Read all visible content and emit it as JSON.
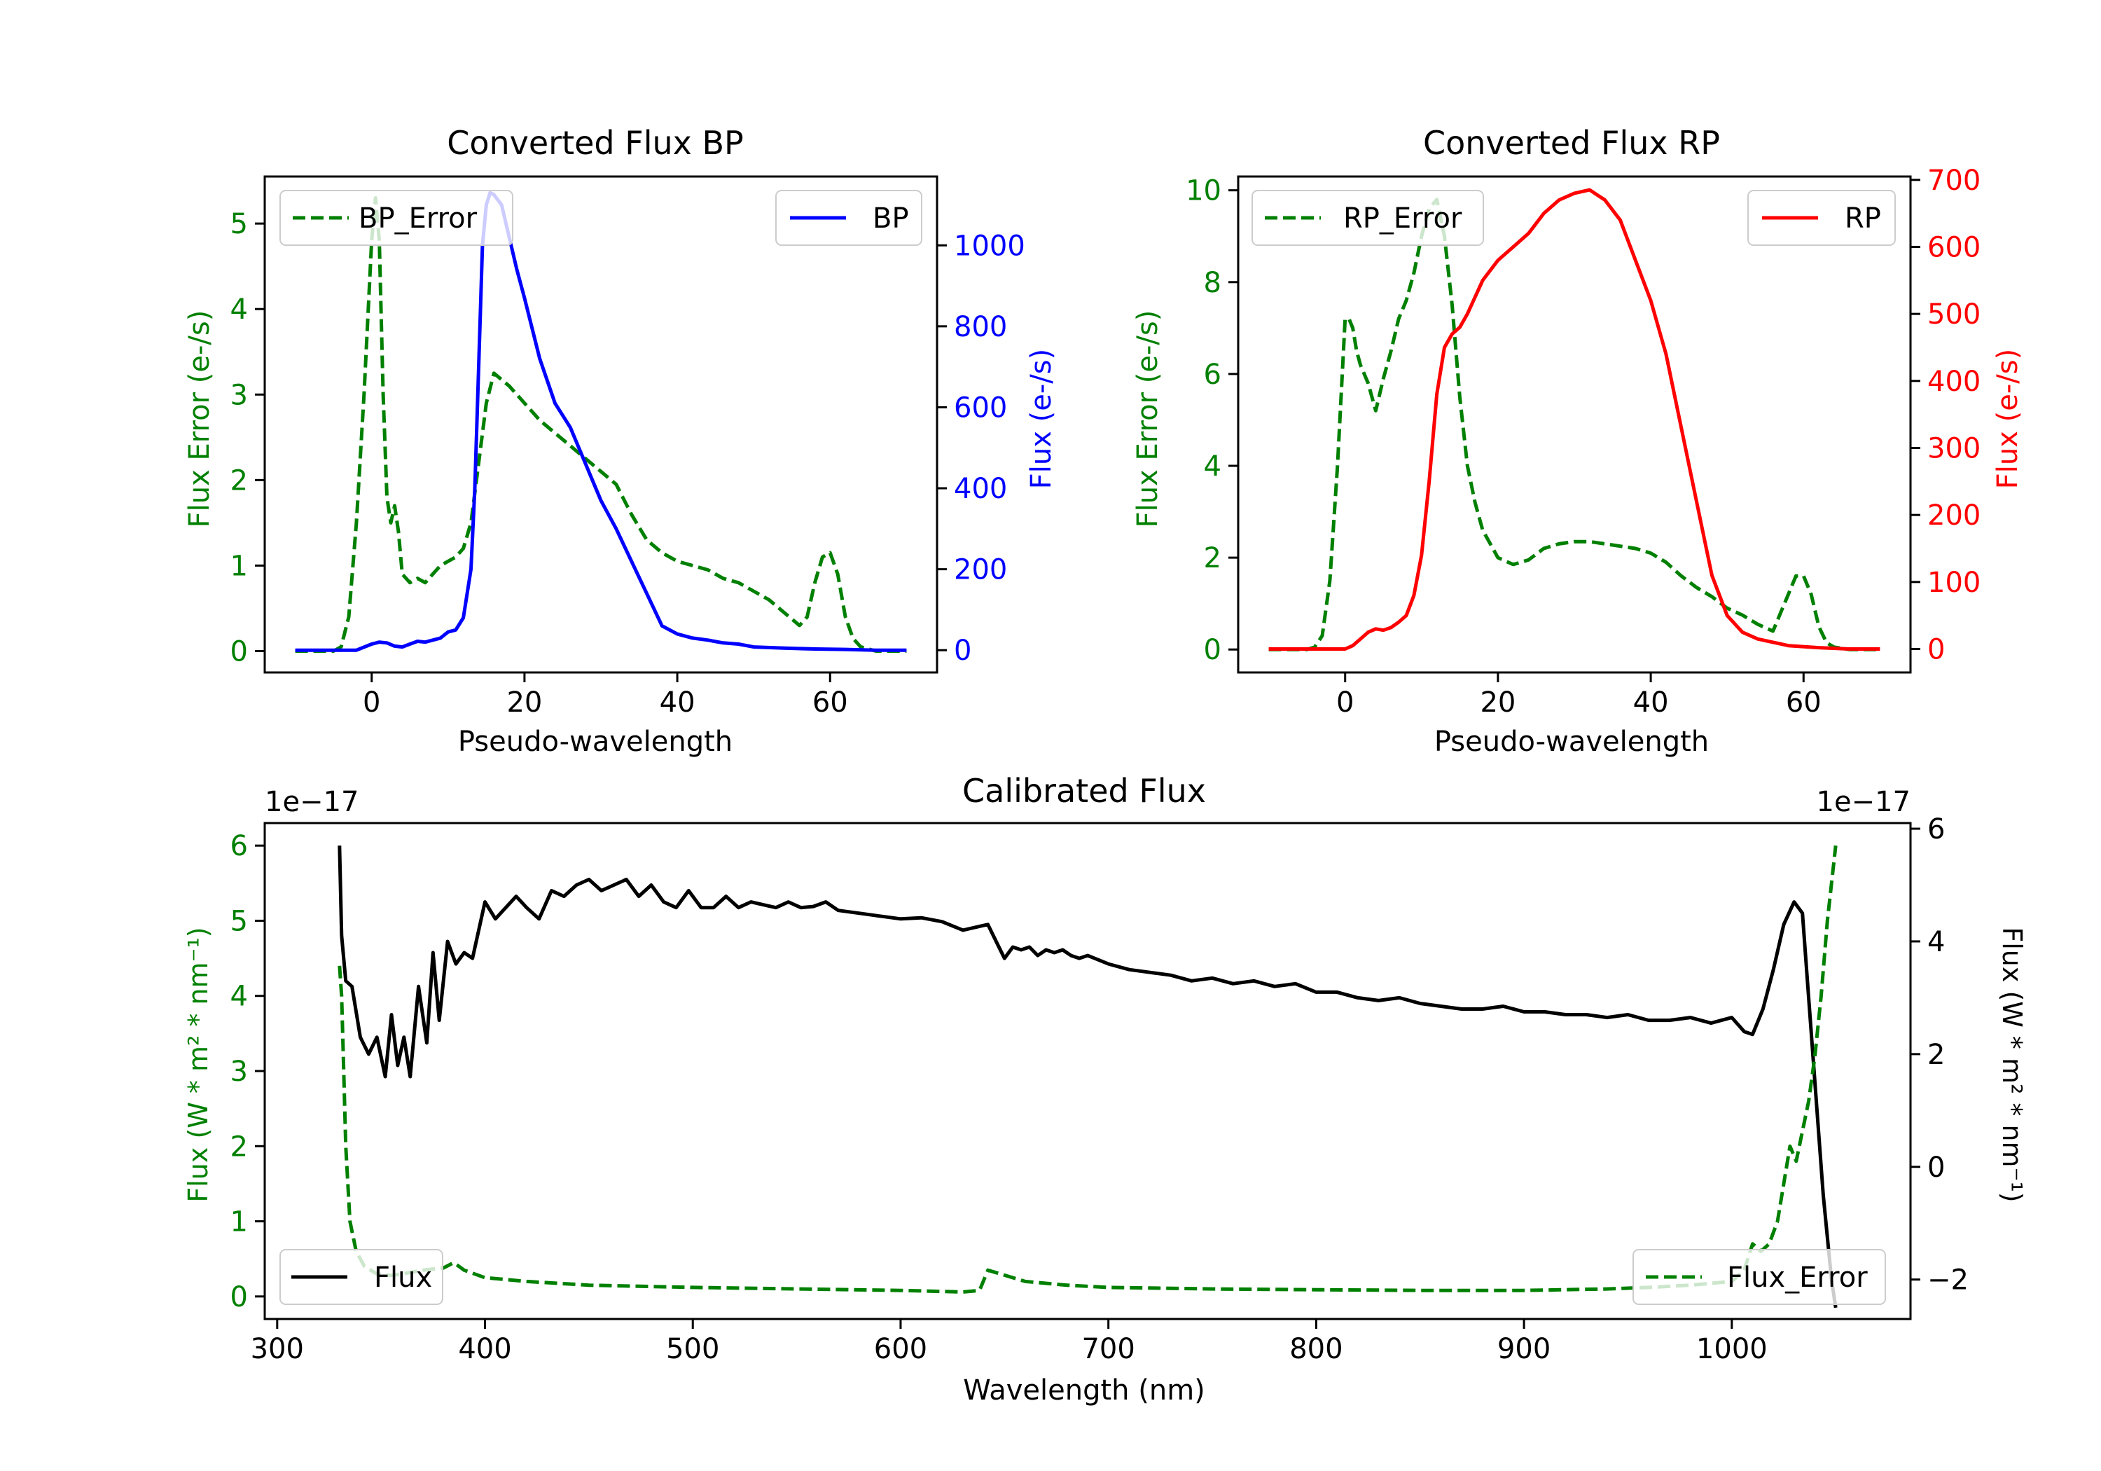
{
  "colors": {
    "green": "#008000",
    "blue": "#0000ff",
    "red": "#ff0000",
    "black": "#000000"
  },
  "chart_data": [
    {
      "type": "line",
      "title": "Converted Flux BP",
      "xlabel": "Pseudo-wavelength",
      "ylabel_left": "Flux Error (e-/s)",
      "ylabel_right": "Flux (e-/s)",
      "xlim": [
        -14,
        74
      ],
      "ylim_left": [
        -0.25,
        5.55
      ],
      "ylim_right": [
        -55,
        1170
      ],
      "xticks": [
        0,
        20,
        40,
        60
      ],
      "yticks_left": [
        0,
        1,
        2,
        3,
        4,
        5
      ],
      "yticks_right": [
        0,
        200,
        400,
        600,
        800,
        1000
      ],
      "series": [
        {
          "name": "BP_Error",
          "axis": "left",
          "color": "#008000",
          "style": "dashed",
          "x": [
            -10,
            -5,
            -4,
            -3,
            -2,
            -1,
            0,
            0.5,
            1,
            1.5,
            2,
            2.5,
            3,
            3.5,
            4,
            5,
            6,
            7,
            8,
            9,
            10,
            11,
            12,
            13,
            14,
            15,
            16,
            18,
            20,
            22,
            24,
            26,
            28,
            30,
            32,
            34,
            36,
            38,
            40,
            42,
            44,
            46,
            48,
            50,
            52,
            54,
            56,
            57,
            58,
            59,
            60,
            61,
            62,
            63,
            64,
            66,
            70
          ],
          "values": [
            0,
            0,
            0.05,
            0.4,
            1.5,
            3.0,
            4.8,
            5.3,
            4.8,
            3.0,
            1.8,
            1.5,
            1.7,
            1.4,
            0.9,
            0.8,
            0.85,
            0.8,
            0.9,
            1.0,
            1.05,
            1.1,
            1.2,
            1.5,
            2.2,
            2.9,
            3.25,
            3.1,
            2.9,
            2.7,
            2.55,
            2.4,
            2.25,
            2.1,
            1.95,
            1.6,
            1.3,
            1.15,
            1.05,
            1.0,
            0.95,
            0.85,
            0.8,
            0.7,
            0.6,
            0.45,
            0.3,
            0.4,
            0.8,
            1.1,
            1.15,
            0.9,
            0.4,
            0.15,
            0.05,
            0,
            0
          ]
        },
        {
          "name": "BP",
          "axis": "right",
          "color": "#0000ff",
          "style": "solid",
          "x": [
            -10,
            -2,
            0,
            1,
            2,
            3,
            4,
            5,
            6,
            7,
            8,
            9,
            10,
            11,
            12,
            13,
            13.5,
            14,
            14.5,
            15,
            15.5,
            16,
            17,
            18,
            19,
            20,
            22,
            24,
            26,
            28,
            30,
            32,
            34,
            36,
            38,
            40,
            42,
            44,
            46,
            48,
            50,
            54,
            58,
            62,
            66,
            70
          ],
          "values": [
            0,
            0,
            15,
            20,
            18,
            10,
            8,
            15,
            22,
            20,
            25,
            30,
            45,
            50,
            80,
            200,
            400,
            700,
            1000,
            1100,
            1130,
            1125,
            1100,
            1020,
            940,
            870,
            720,
            610,
            550,
            460,
            370,
            300,
            220,
            140,
            60,
            40,
            30,
            25,
            18,
            15,
            8,
            5,
            3,
            2,
            0,
            0
          ]
        }
      ],
      "legend": [
        {
          "label": "BP_Error",
          "placement": "upper-left"
        },
        {
          "label": "BP",
          "placement": "upper-right"
        }
      ]
    },
    {
      "type": "line",
      "title": "Converted Flux RP",
      "xlabel": "Pseudo-wavelength",
      "ylabel_left": "Flux Error (e-/s)",
      "ylabel_right": "Flux (e-/s)",
      "xlim": [
        -14,
        74
      ],
      "ylim_left": [
        -0.5,
        10.3
      ],
      "ylim_right": [
        -35,
        705
      ],
      "xticks": [
        0,
        20,
        40,
        60
      ],
      "yticks_left": [
        0,
        2,
        4,
        6,
        8,
        10
      ],
      "yticks_right": [
        0,
        100,
        200,
        300,
        400,
        500,
        600,
        700
      ],
      "series": [
        {
          "name": "RP_Error",
          "axis": "left",
          "color": "#008000",
          "style": "dashed",
          "x": [
            -10,
            -5,
            -4,
            -3,
            -2,
            -1,
            0,
            0.5,
            1,
            1.5,
            2,
            3,
            4,
            5,
            6,
            7,
            8,
            9,
            10,
            11,
            12,
            13,
            14,
            15,
            16,
            17,
            18,
            20,
            22,
            24,
            26,
            28,
            30,
            32,
            34,
            36,
            38,
            40,
            42,
            44,
            46,
            48,
            50,
            52,
            54,
            56,
            57,
            58,
            59,
            60,
            61,
            62,
            63,
            64,
            66,
            70
          ],
          "values": [
            0,
            0,
            0.05,
            0.3,
            1.5,
            4,
            7.2,
            7.2,
            7,
            6.5,
            6.2,
            5.8,
            5.2,
            5.9,
            6.5,
            7.2,
            7.6,
            8.2,
            9.0,
            9.6,
            9.8,
            9.0,
            7.5,
            5.5,
            4.0,
            3.2,
            2.6,
            2.0,
            1.85,
            1.95,
            2.2,
            2.3,
            2.35,
            2.35,
            2.3,
            2.25,
            2.2,
            2.1,
            1.9,
            1.6,
            1.35,
            1.15,
            0.9,
            0.75,
            0.55,
            0.4,
            0.8,
            1.2,
            1.6,
            1.6,
            1.2,
            0.5,
            0.15,
            0.05,
            0,
            0
          ]
        },
        {
          "name": "RP",
          "axis": "right",
          "color": "#ff0000",
          "style": "solid",
          "x": [
            -10,
            0,
            1,
            2,
            3,
            4,
            5,
            6,
            7,
            8,
            9,
            10,
            11,
            12,
            13,
            14,
            15,
            16,
            18,
            20,
            22,
            24,
            26,
            28,
            30,
            32,
            34,
            36,
            38,
            40,
            42,
            44,
            46,
            48,
            50,
            52,
            54,
            56,
            58,
            62,
            66,
            70
          ],
          "values": [
            0,
            0,
            5,
            15,
            25,
            30,
            28,
            32,
            40,
            50,
            80,
            140,
            250,
            380,
            450,
            470,
            480,
            500,
            550,
            580,
            600,
            620,
            650,
            670,
            680,
            685,
            670,
            640,
            580,
            520,
            440,
            330,
            220,
            110,
            50,
            25,
            15,
            10,
            5,
            2,
            0,
            0
          ]
        }
      ],
      "legend": [
        {
          "label": "RP_Error",
          "placement": "upper-left"
        },
        {
          "label": "RP",
          "placement": "upper-right"
        }
      ]
    },
    {
      "type": "line",
      "title": "Calibrated Flux",
      "xlabel": "Wavelength (nm)",
      "ylabel_left": "Flux (W * m² * nm⁻¹)",
      "ylabel_right": "Flux (W * m² * nm⁻¹)",
      "offset_label_left": "1e−17",
      "offset_label_right": "1e−17",
      "xlim": [
        294,
        1086
      ],
      "ylim_left": [
        -0.3,
        6.3
      ],
      "ylim_right": [
        -2.7,
        6.1
      ],
      "xticks": [
        300,
        400,
        500,
        600,
        700,
        800,
        900,
        1000
      ],
      "yticks_left": [
        0,
        1,
        2,
        3,
        4,
        5,
        6
      ],
      "yticks_right": [
        -2,
        0,
        2,
        4,
        6
      ],
      "tick_labels_right": [
        "−2",
        "0",
        "2",
        "4",
        "6"
      ],
      "series": [
        {
          "name": "Flux",
          "axis": "right",
          "color": "#000000",
          "style": "solid",
          "x": [
            330,
            331,
            333,
            336,
            340,
            344,
            348,
            352,
            355,
            358,
            361,
            364,
            368,
            372,
            375,
            378,
            382,
            386,
            390,
            394,
            400,
            405,
            410,
            415,
            420,
            426,
            432,
            438,
            444,
            450,
            456,
            462,
            468,
            474,
            480,
            486,
            492,
            498,
            504,
            510,
            516,
            522,
            528,
            534,
            540,
            546,
            552,
            558,
            564,
            570,
            580,
            590,
            600,
            610,
            620,
            630,
            636,
            642,
            646,
            650,
            654,
            658,
            662,
            666,
            670,
            674,
            678,
            682,
            686,
            690,
            700,
            710,
            720,
            730,
            740,
            750,
            760,
            770,
            780,
            790,
            800,
            810,
            820,
            830,
            840,
            850,
            860,
            870,
            880,
            890,
            900,
            910,
            920,
            930,
            940,
            950,
            960,
            970,
            980,
            990,
            1000,
            1006,
            1010,
            1015,
            1020,
            1025,
            1030,
            1034,
            1036,
            1040,
            1044,
            1048,
            1050
          ],
          "values": [
            5.7,
            4.1,
            3.3,
            3.2,
            2.3,
            2.0,
            2.3,
            1.6,
            2.7,
            1.8,
            2.3,
            1.6,
            3.2,
            2.2,
            3.8,
            2.6,
            4.0,
            3.6,
            3.8,
            3.7,
            4.7,
            4.4,
            4.6,
            4.8,
            4.6,
            4.4,
            4.9,
            4.8,
            5.0,
            5.1,
            4.9,
            5.0,
            5.1,
            4.8,
            5.0,
            4.7,
            4.6,
            4.9,
            4.6,
            4.6,
            4.8,
            4.6,
            4.7,
            4.65,
            4.6,
            4.7,
            4.6,
            4.62,
            4.7,
            4.55,
            4.5,
            4.45,
            4.4,
            4.42,
            4.35,
            4.2,
            4.25,
            4.3,
            4.0,
            3.7,
            3.9,
            3.85,
            3.9,
            3.75,
            3.85,
            3.8,
            3.85,
            3.75,
            3.7,
            3.75,
            3.6,
            3.5,
            3.45,
            3.4,
            3.3,
            3.35,
            3.25,
            3.3,
            3.2,
            3.25,
            3.1,
            3.1,
            3.0,
            2.95,
            3.0,
            2.9,
            2.85,
            2.8,
            2.8,
            2.85,
            2.75,
            2.75,
            2.7,
            2.7,
            2.65,
            2.7,
            2.6,
            2.6,
            2.65,
            2.55,
            2.65,
            2.4,
            2.35,
            2.8,
            3.5,
            4.3,
            4.7,
            4.5,
            3.5,
            1.5,
            -0.5,
            -2.0,
            -2.5
          ]
        },
        {
          "name": "Flux_Error",
          "axis": "left",
          "color": "#008000",
          "style": "dashed",
          "x": [
            330,
            331,
            332,
            333,
            335,
            338,
            342,
            348,
            355,
            360,
            370,
            380,
            385,
            390,
            400,
            420,
            450,
            500,
            550,
            600,
            630,
            638,
            642,
            648,
            660,
            680,
            700,
            750,
            800,
            850,
            900,
            940,
            960,
            980,
            1000,
            1006,
            1010,
            1014,
            1018,
            1022,
            1025,
            1028,
            1031,
            1034,
            1037,
            1040,
            1043,
            1046,
            1050
          ],
          "values": [
            4.4,
            4.0,
            3.0,
            2.0,
            1.0,
            0.6,
            0.4,
            0.3,
            0.28,
            0.3,
            0.35,
            0.38,
            0.45,
            0.35,
            0.25,
            0.2,
            0.15,
            0.12,
            0.1,
            0.08,
            0.06,
            0.08,
            0.35,
            0.3,
            0.2,
            0.15,
            0.12,
            0.1,
            0.09,
            0.08,
            0.08,
            0.1,
            0.12,
            0.15,
            0.2,
            0.35,
            0.7,
            0.6,
            0.7,
            1.0,
            1.5,
            2.0,
            1.8,
            2.2,
            2.6,
            3.2,
            4.0,
            5.0,
            6.0
          ]
        }
      ],
      "legend": [
        {
          "label": "Flux",
          "placement": "lower-left"
        },
        {
          "label": "Flux_Error",
          "placement": "lower-right"
        }
      ]
    }
  ]
}
